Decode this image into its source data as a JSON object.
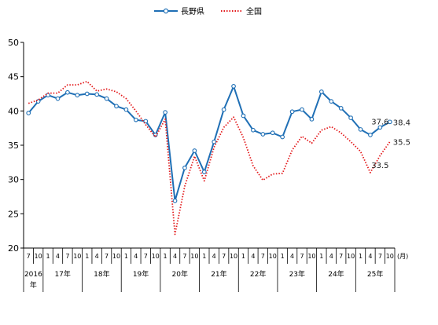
{
  "chart_data": {
    "type": "line",
    "ylim": [
      20,
      50
    ],
    "y_ticks": [
      "20",
      "25",
      "30",
      "35",
      "40",
      "45",
      "50"
    ],
    "x_unit_label": "(月)",
    "legend_position": "top-center",
    "grid": false,
    "month_labels": [
      "7",
      "10",
      "1",
      "4",
      "7",
      "10",
      "1",
      "4",
      "7",
      "10",
      "1",
      "4",
      "7",
      "10",
      "1",
      "4",
      "7",
      "10",
      "1",
      "4",
      "7",
      "10",
      "1",
      "4",
      "7",
      "10",
      "1",
      "4",
      "7",
      "10",
      "1",
      "4",
      "7",
      "10",
      "1",
      "4",
      "7",
      "10"
    ],
    "year_labels": [
      {
        "label": "2016",
        "label2": "年",
        "start": 0,
        "end": 2
      },
      {
        "label": "17年",
        "start": 2,
        "end": 6
      },
      {
        "label": "18年",
        "start": 6,
        "end": 10
      },
      {
        "label": "19年",
        "start": 10,
        "end": 14
      },
      {
        "label": "20年",
        "start": 14,
        "end": 18
      },
      {
        "label": "21年",
        "start": 18,
        "end": 22
      },
      {
        "label": "22年",
        "start": 22,
        "end": 26
      },
      {
        "label": "23年",
        "start": 26,
        "end": 30
      },
      {
        "label": "24年",
        "start": 30,
        "end": 34
      },
      {
        "label": "25年",
        "start": 34,
        "end": 38
      }
    ],
    "series": [
      {
        "name": "長野県",
        "color": "#1f6fb5",
        "style": "solid-markers",
        "values": [
          39.7,
          41.4,
          42.3,
          41.8,
          42.7,
          42.3,
          42.5,
          42.4,
          41.8,
          40.7,
          40.2,
          38.7,
          38.5,
          36.5,
          39.8,
          26.9,
          31.7,
          34.2,
          31.1,
          35.5,
          40.2,
          43.6,
          39.3,
          37.2,
          36.6,
          36.8,
          36.2,
          39.9,
          40.2,
          38.8,
          42.8,
          41.4,
          40.4,
          39.0,
          37.3,
          36.5,
          37.6,
          38.4
        ]
      },
      {
        "name": "全国",
        "color": "#e31a1c",
        "style": "dotted",
        "values": [
          41.1,
          41.6,
          42.6,
          42.6,
          43.8,
          43.8,
          44.3,
          42.9,
          43.2,
          42.8,
          41.8,
          40.0,
          38.0,
          36.2,
          38.8,
          22.0,
          29.0,
          33.4,
          29.8,
          34.7,
          37.6,
          39.1,
          36.1,
          32.0,
          29.9,
          30.8,
          30.9,
          34.3,
          36.3,
          35.3,
          37.2,
          37.7,
          36.8,
          35.5,
          34.1,
          31.0,
          33.5,
          35.5
        ]
      }
    ],
    "data_labels": [
      {
        "series": 0,
        "index": 36,
        "text": "37.6"
      },
      {
        "series": 0,
        "index": 37,
        "text": "38.4"
      },
      {
        "series": 1,
        "index": 36,
        "text": "33.5"
      },
      {
        "series": 1,
        "index": 37,
        "text": "35.5"
      }
    ]
  }
}
